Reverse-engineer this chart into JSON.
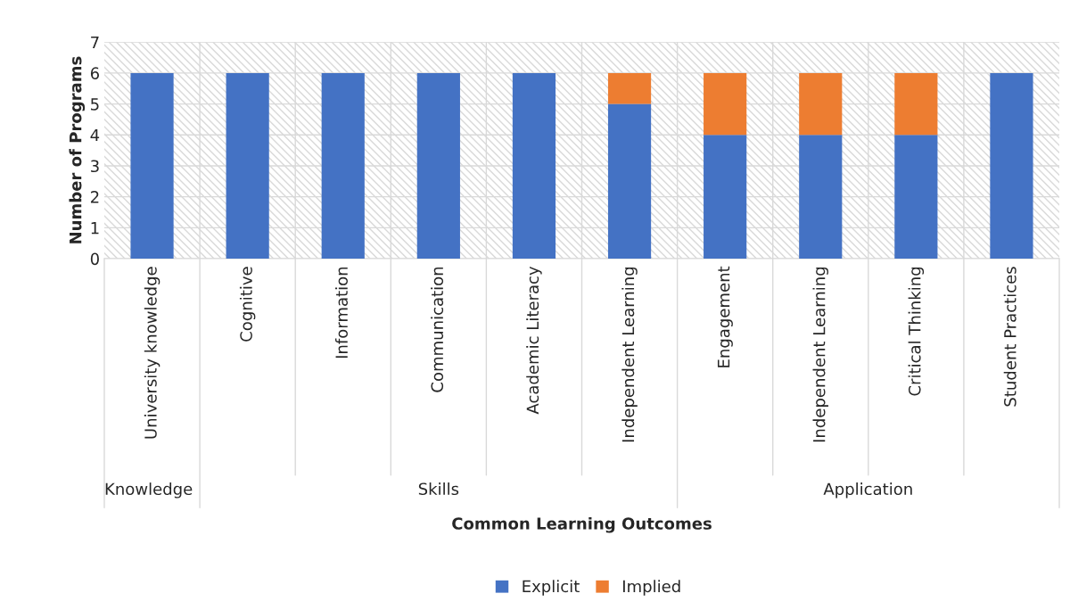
{
  "chart_data": {
    "type": "bar",
    "stacked": true,
    "ylabel": "Number of Programs",
    "categories": [
      "University knowledge",
      "Cognitive",
      "Information",
      "Communication",
      "Academic Literacy",
      "Independent Learning",
      "Engagement",
      "Independent Learning",
      "Critical Thinking",
      "Student Practices"
    ],
    "series": [
      {
        "name": "Explicit",
        "color": "#4472c4",
        "values": [
          6,
          6,
          6,
          6,
          6,
          5,
          4,
          4,
          4,
          6
        ]
      },
      {
        "name": "Implied",
        "color": "#ed7d31",
        "values": [
          null,
          null,
          null,
          null,
          null,
          1,
          2,
          2,
          2,
          null
        ]
      }
    ],
    "ylim": [
      0,
      7
    ],
    "yticks": [
      0,
      1,
      2,
      3,
      4,
      5,
      6,
      7
    ],
    "grid": "y",
    "legend": "bottom",
    "annotations": [
      "Knowledge",
      "Skills",
      "Application",
      "Common Learning Outcomes"
    ]
  }
}
